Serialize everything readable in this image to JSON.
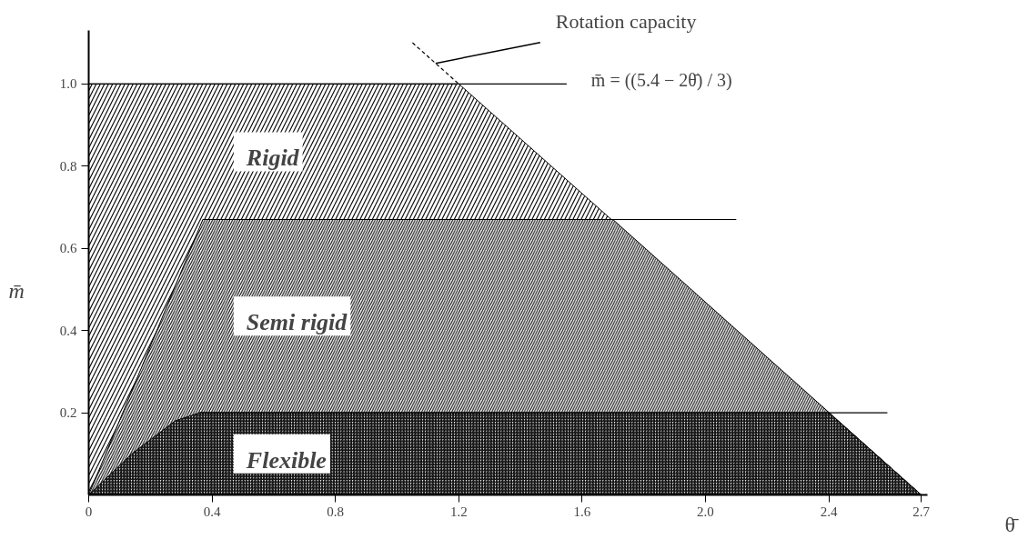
{
  "chart_data": {
    "type": "area",
    "xlabel": "θ̄",
    "ylabel": "m̄",
    "xlim": [
      0,
      2.72
    ],
    "ylim": [
      0,
      1.13
    ],
    "xticks": [
      0,
      0.4,
      0.8,
      1.2,
      1.6,
      {
        "value": 2.0,
        "label": "2.0"
      },
      2.4,
      2.7
    ],
    "yticks": [
      0.2,
      0.4,
      0.6,
      0.8,
      {
        "value": 1.0,
        "label": "1.0"
      }
    ],
    "series": [
      {
        "name": "Rigid",
        "color": "#000000",
        "x": [
          0,
          1.2,
          2.7
        ],
        "values": [
          1.0,
          1.0,
          0
        ]
      },
      {
        "name": "Semi rigid",
        "color": "#000000",
        "x": [
          0,
          0.37,
          1.7,
          2.7
        ],
        "values": [
          0,
          0.67,
          0.67,
          0
        ]
      },
      {
        "name": "Flexible",
        "color": "#000000",
        "x": [
          0,
          0.14,
          0.28,
          0.36,
          2.4,
          2.7
        ],
        "values": [
          0,
          0.1,
          0.18,
          0.2,
          0.2,
          0
        ]
      },
      {
        "type": "line",
        "color": "#000000",
        "line_style": "dashed",
        "x": [
          1.05,
          1.2
        ],
        "values": [
          1.1,
          1.0
        ]
      },
      {
        "type": "line",
        "color": "#000000",
        "x": [
          0,
          1.55
        ],
        "values": [
          1.0,
          1.0
        ]
      },
      {
        "type": "line",
        "color": "#000000",
        "x": [
          0.37,
          2.1
        ],
        "values": [
          0.67,
          0.67
        ]
      },
      {
        "type": "line",
        "color": "#000000",
        "x": [
          0.36,
          2.59
        ],
        "values": [
          0.2,
          0.2
        ]
      }
    ],
    "annotations": [
      {
        "text": "Rotation capacity",
        "x": 1.125,
        "y": 1.05
      },
      "m̄ = ((5.4 − 2θ̄) / 3)"
    ]
  }
}
